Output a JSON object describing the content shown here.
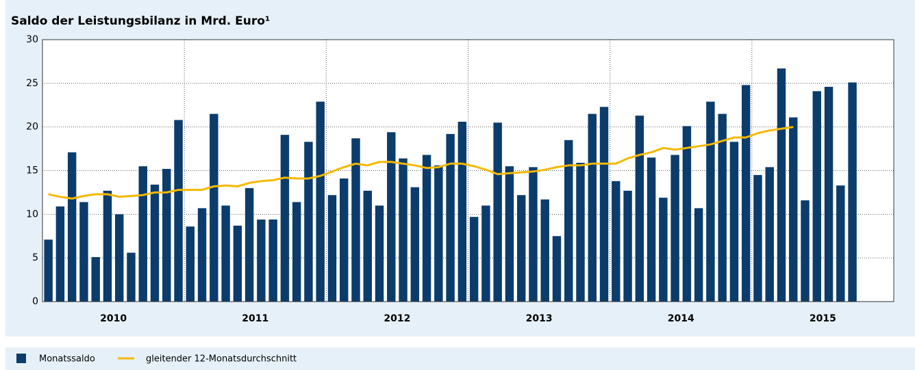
{
  "chart_data": {
    "type": "bar-line",
    "title": "Saldo der Leistungsbilanz in Mrd. Euro¹",
    "year_labels": [
      "2010",
      "2011",
      "2012",
      "2013",
      "2014",
      "2015"
    ],
    "ylim": [
      0,
      30
    ],
    "yticks": [
      0,
      5,
      10,
      15,
      20,
      25,
      30
    ],
    "grid": true,
    "series": [
      {
        "name": "Monatssaldo",
        "type": "bar",
        "color": "#0b3c6c",
        "values": [
          7.1,
          10.9,
          17.1,
          11.4,
          5.1,
          12.7,
          10.0,
          5.6,
          15.5,
          13.4,
          15.2,
          20.8,
          8.6,
          10.7,
          21.5,
          11.0,
          8.7,
          13.0,
          9.4,
          9.4,
          19.1,
          11.4,
          18.3,
          22.9,
          12.2,
          14.1,
          18.7,
          12.7,
          11.0,
          19.4,
          16.4,
          13.1,
          16.8,
          15.6,
          19.2,
          20.6,
          9.7,
          11.0,
          20.5,
          15.5,
          12.2,
          15.4,
          11.7,
          7.5,
          18.5,
          15.9,
          21.5,
          22.3,
          13.8,
          12.7,
          21.3,
          16.5,
          11.9,
          16.8,
          20.1,
          10.7,
          22.9,
          21.5,
          18.3,
          24.8,
          14.5,
          15.4,
          26.7,
          21.1,
          11.6,
          24.1,
          24.6,
          13.3,
          25.1,
          null,
          null,
          null
        ]
      },
      {
        "name": "gleitender 12-Monatsdurchschnitt",
        "type": "line",
        "color": "#f5b800",
        "values": [
          12.3,
          12.0,
          11.8,
          12.1,
          12.3,
          12.3,
          12.0,
          12.1,
          12.2,
          12.5,
          12.5,
          12.8,
          12.8,
          12.8,
          13.2,
          13.3,
          13.2,
          13.6,
          13.8,
          13.9,
          14.2,
          14.1,
          14.1,
          14.4,
          14.9,
          15.4,
          15.8,
          15.6,
          16.0,
          16.0,
          15.8,
          15.6,
          15.3,
          15.4,
          15.8,
          15.8,
          15.5,
          15.1,
          14.6,
          14.7,
          14.8,
          14.9,
          15.1,
          15.4,
          15.6,
          15.6,
          15.8,
          15.8,
          15.8,
          16.4,
          16.8,
          17.1,
          17.6,
          17.4,
          17.6,
          17.8,
          18.0,
          18.4,
          18.8,
          18.8,
          19.3,
          19.6,
          19.8,
          20.0,
          null,
          null,
          null,
          null,
          null,
          null,
          null,
          null
        ]
      }
    ]
  }
}
